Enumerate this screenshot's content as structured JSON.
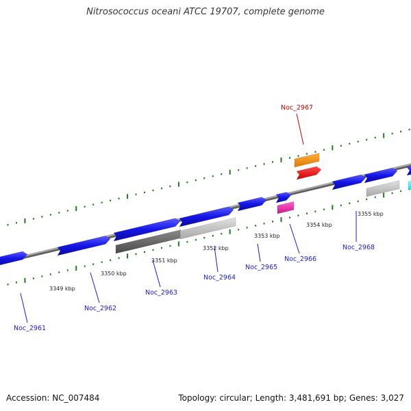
{
  "title": "Nitrosococcus oceani ATCC 19707, complete genome",
  "footer": {
    "accession": "Accession: NC_007484",
    "stats": "Topology: circular; Length: 3,481,691 bp; Genes: 3,027"
  },
  "colors": {
    "forward_gene": "#1515e8",
    "highlight_label": "#cc0000",
    "label": "#1a1acc",
    "tick": "#1d7a1d",
    "backbone": "#888888"
  },
  "kbp_marks": [
    "3349 kbp",
    "3350 kbp",
    "3351 kbp",
    "3352 kbp",
    "3353 kbp",
    "3354 kbp",
    "3355 kbp"
  ],
  "genes": [
    {
      "name": "Noc_2961",
      "strand": "+",
      "color": "#1515e8"
    },
    {
      "name": "Noc_2962",
      "strand": "+",
      "color": "#1515e8"
    },
    {
      "name": "Noc_2963",
      "strand": "+",
      "color": "#1515e8"
    },
    {
      "name": "Noc_2964",
      "strand": "+",
      "color": "#1515e8"
    },
    {
      "name": "Noc_2965",
      "strand": "+",
      "color": "#1515e8"
    },
    {
      "name": "Noc_2966",
      "strand": "+",
      "color": "#1515e8"
    },
    {
      "name": "Noc_2967",
      "strand": "+",
      "color": "#ff1010",
      "highlighted": true
    },
    {
      "name": "Noc_2968",
      "strand": "+",
      "color": "#1515e8"
    }
  ]
}
